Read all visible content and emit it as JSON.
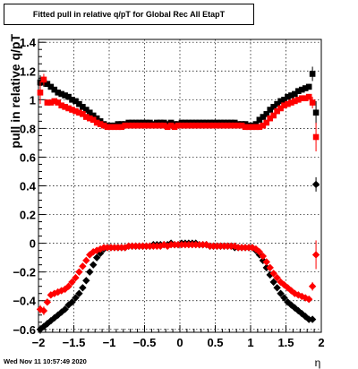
{
  "title": "Fitted pull in relative q/pT for Global Rec All EtapT",
  "datestamp": "Wed Nov 11 10:57:49 2020",
  "chart_data": {
    "type": "scatter",
    "title": "Fitted pull in relative q/pT for Global Rec All EtapT",
    "xlabel": "η",
    "ylabel": "pull in relative q/pT",
    "xlim": [
      -2.0,
      2.0
    ],
    "ylim": [
      -0.62,
      1.42
    ],
    "x_ticks": [
      "−2",
      "−1.5",
      "−1",
      "−0.5",
      "0",
      "0.5",
      "1",
      "1.5",
      "2"
    ],
    "y_ticks": [
      "−0.6",
      "−0.4",
      "−0.2",
      "0",
      "0.2",
      "0.4",
      "0.6",
      "0.8",
      "1",
      "1.2",
      "1.4"
    ],
    "grid": true,
    "colors": {
      "black": "#000000",
      "red": "#ff0000"
    },
    "series": [
      {
        "color": "black",
        "marker": "square",
        "x": [
          -1.975,
          -1.925,
          -1.875,
          -1.825,
          -1.775,
          -1.725,
          -1.675,
          -1.625,
          -1.575,
          -1.525,
          -1.475,
          -1.425,
          -1.375,
          -1.325,
          -1.275,
          -1.225,
          -1.175,
          -1.125,
          -1.075,
          -1.025,
          -0.975,
          -0.925,
          -0.875,
          -0.825,
          -0.775,
          -0.725,
          -0.675,
          -0.625,
          -0.575,
          -0.525,
          -0.475,
          -0.425,
          -0.375,
          -0.325,
          -0.275,
          -0.225,
          -0.175,
          -0.125,
          -0.075,
          -0.025,
          0.025,
          0.075,
          0.125,
          0.175,
          0.225,
          0.275,
          0.325,
          0.375,
          0.425,
          0.475,
          0.525,
          0.575,
          0.625,
          0.675,
          0.725,
          0.775,
          0.825,
          0.875,
          0.925,
          0.975,
          1.025,
          1.075,
          1.125,
          1.175,
          1.225,
          1.275,
          1.325,
          1.375,
          1.425,
          1.475,
          1.525,
          1.575,
          1.625,
          1.675,
          1.725,
          1.775,
          1.825,
          1.875,
          1.925
        ],
        "y": [
          1.12,
          1.12,
          1.11,
          1.09,
          1.07,
          1.05,
          1.04,
          1.03,
          1.02,
          1.0,
          0.99,
          0.97,
          0.95,
          0.93,
          0.91,
          0.89,
          0.87,
          0.85,
          0.83,
          0.82,
          0.82,
          0.82,
          0.83,
          0.83,
          0.83,
          0.84,
          0.84,
          0.84,
          0.84,
          0.84,
          0.84,
          0.84,
          0.83,
          0.84,
          0.84,
          0.84,
          0.83,
          0.84,
          0.83,
          0.83,
          0.84,
          0.84,
          0.84,
          0.84,
          0.84,
          0.84,
          0.84,
          0.84,
          0.84,
          0.84,
          0.84,
          0.84,
          0.84,
          0.84,
          0.84,
          0.84,
          0.83,
          0.83,
          0.83,
          0.82,
          0.82,
          0.83,
          0.86,
          0.88,
          0.9,
          0.93,
          0.95,
          0.97,
          0.99,
          1.0,
          1.02,
          1.03,
          1.04,
          1.06,
          1.07,
          1.08,
          1.09,
          1.18,
          0.91
        ],
        "yerr": [
          0.05,
          0.03,
          0.02,
          0,
          0,
          0,
          0,
          0,
          0,
          0,
          0,
          0,
          0,
          0,
          0,
          0,
          0,
          0,
          0,
          0,
          0,
          0,
          0,
          0,
          0,
          0,
          0,
          0,
          0,
          0,
          0,
          0,
          0,
          0,
          0,
          0,
          0,
          0,
          0,
          0,
          0,
          0,
          0,
          0,
          0,
          0,
          0,
          0,
          0,
          0,
          0,
          0,
          0,
          0,
          0,
          0,
          0,
          0,
          0,
          0,
          0,
          0,
          0,
          0,
          0,
          0,
          0,
          0,
          0,
          0,
          0,
          0,
          0,
          0,
          0,
          0,
          0.02,
          0.05,
          0.08
        ]
      },
      {
        "color": "red",
        "marker": "square",
        "x": [
          -1.975,
          -1.925,
          -1.875,
          -1.825,
          -1.775,
          -1.725,
          -1.675,
          -1.625,
          -1.575,
          -1.525,
          -1.475,
          -1.425,
          -1.375,
          -1.325,
          -1.275,
          -1.225,
          -1.175,
          -1.125,
          -1.075,
          -1.025,
          -0.975,
          -0.925,
          -0.875,
          -0.825,
          -0.775,
          -0.725,
          -0.675,
          -0.625,
          -0.575,
          -0.525,
          -0.475,
          -0.425,
          -0.375,
          -0.325,
          -0.275,
          -0.225,
          -0.175,
          -0.125,
          -0.075,
          -0.025,
          0.025,
          0.075,
          0.125,
          0.175,
          0.225,
          0.275,
          0.325,
          0.375,
          0.425,
          0.475,
          0.525,
          0.575,
          0.625,
          0.675,
          0.725,
          0.775,
          0.825,
          0.875,
          0.925,
          0.975,
          1.025,
          1.075,
          1.125,
          1.175,
          1.225,
          1.275,
          1.325,
          1.375,
          1.425,
          1.475,
          1.525,
          1.575,
          1.625,
          1.675,
          1.725,
          1.775,
          1.825,
          1.875,
          1.925
        ],
        "y": [
          1.05,
          1.14,
          0.98,
          0.98,
          0.99,
          0.98,
          0.96,
          0.95,
          0.94,
          0.93,
          0.92,
          0.91,
          0.9,
          0.88,
          0.87,
          0.86,
          0.84,
          0.83,
          0.82,
          0.81,
          0.81,
          0.81,
          0.81,
          0.81,
          0.82,
          0.82,
          0.82,
          0.82,
          0.82,
          0.82,
          0.82,
          0.82,
          0.82,
          0.82,
          0.82,
          0.82,
          0.81,
          0.82,
          0.81,
          0.82,
          0.82,
          0.82,
          0.82,
          0.82,
          0.82,
          0.82,
          0.82,
          0.82,
          0.82,
          0.82,
          0.82,
          0.82,
          0.82,
          0.82,
          0.82,
          0.82,
          0.82,
          0.82,
          0.81,
          0.81,
          0.81,
          0.81,
          0.81,
          0.82,
          0.84,
          0.87,
          0.89,
          0.92,
          0.94,
          0.96,
          0.97,
          0.98,
          0.99,
          1.0,
          1.01,
          1.01,
          1.02,
          0.98,
          0.74
        ],
        "yerr": [
          0.08,
          0.04,
          0.02,
          0,
          0,
          0,
          0,
          0,
          0,
          0,
          0,
          0,
          0,
          0,
          0,
          0,
          0,
          0,
          0,
          0,
          0,
          0,
          0,
          0,
          0,
          0,
          0,
          0,
          0,
          0,
          0,
          0,
          0,
          0,
          0,
          0,
          0,
          0,
          0,
          0,
          0,
          0,
          0,
          0,
          0,
          0,
          0,
          0,
          0,
          0,
          0,
          0,
          0,
          0,
          0,
          0,
          0,
          0,
          0,
          0,
          0,
          0,
          0,
          0,
          0,
          0,
          0,
          0,
          0,
          0,
          0,
          0,
          0,
          0,
          0,
          0,
          0.02,
          0.04,
          0.1
        ]
      },
      {
        "color": "black",
        "marker": "diamond",
        "x": [
          -1.975,
          -1.925,
          -1.875,
          -1.825,
          -1.775,
          -1.725,
          -1.675,
          -1.625,
          -1.575,
          -1.525,
          -1.475,
          -1.425,
          -1.375,
          -1.325,
          -1.275,
          -1.225,
          -1.175,
          -1.125,
          -1.075,
          -1.025,
          -0.975,
          -0.925,
          -0.875,
          -0.825,
          -0.775,
          -0.725,
          -0.675,
          -0.625,
          -0.575,
          -0.525,
          -0.475,
          -0.425,
          -0.375,
          -0.325,
          -0.275,
          -0.225,
          -0.175,
          -0.125,
          -0.075,
          -0.025,
          0.025,
          0.075,
          0.125,
          0.175,
          0.225,
          0.275,
          0.325,
          0.375,
          0.425,
          0.475,
          0.525,
          0.575,
          0.625,
          0.675,
          0.725,
          0.775,
          0.825,
          0.875,
          0.925,
          0.975,
          1.025,
          1.075,
          1.125,
          1.175,
          1.225,
          1.275,
          1.325,
          1.375,
          1.425,
          1.475,
          1.525,
          1.575,
          1.625,
          1.675,
          1.725,
          1.775,
          1.825,
          1.875,
          1.925
        ],
        "y": [
          -0.6,
          -0.58,
          -0.56,
          -0.54,
          -0.52,
          -0.5,
          -0.48,
          -0.46,
          -0.43,
          -0.41,
          -0.38,
          -0.35,
          -0.31,
          -0.26,
          -0.2,
          -0.15,
          -0.1,
          -0.07,
          -0.04,
          -0.03,
          -0.03,
          -0.03,
          -0.03,
          -0.03,
          -0.03,
          -0.02,
          -0.02,
          -0.02,
          -0.02,
          -0.02,
          -0.02,
          -0.02,
          -0.01,
          -0.01,
          -0.01,
          -0.01,
          -0.01,
          0.0,
          -0.01,
          -0.01,
          0.0,
          0.0,
          0.0,
          0.0,
          0.0,
          -0.01,
          -0.01,
          -0.01,
          -0.02,
          -0.02,
          -0.02,
          -0.02,
          -0.02,
          -0.02,
          -0.02,
          -0.03,
          -0.03,
          -0.03,
          -0.03,
          -0.03,
          -0.03,
          -0.05,
          -0.08,
          -0.12,
          -0.17,
          -0.22,
          -0.27,
          -0.31,
          -0.35,
          -0.38,
          -0.41,
          -0.43,
          -0.45,
          -0.47,
          -0.49,
          -0.51,
          -0.53,
          -0.53,
          0.41
        ],
        "yerr": [
          0.03,
          0.02,
          0,
          0,
          0,
          0,
          0,
          0,
          0,
          0,
          0,
          0,
          0,
          0,
          0,
          0,
          0,
          0,
          0,
          0,
          0,
          0,
          0,
          0,
          0,
          0,
          0,
          0,
          0,
          0,
          0,
          0,
          0,
          0,
          0,
          0,
          0,
          0,
          0,
          0,
          0,
          0,
          0,
          0,
          0,
          0,
          0,
          0,
          0,
          0,
          0,
          0,
          0,
          0,
          0,
          0,
          0,
          0,
          0,
          0,
          0,
          0,
          0,
          0,
          0,
          0,
          0,
          0,
          0,
          0,
          0,
          0,
          0,
          0,
          0,
          0,
          0,
          0.02,
          0.05
        ]
      },
      {
        "color": "red",
        "marker": "diamond",
        "x": [
          -1.975,
          -1.925,
          -1.875,
          -1.825,
          -1.775,
          -1.725,
          -1.675,
          -1.625,
          -1.575,
          -1.525,
          -1.475,
          -1.425,
          -1.375,
          -1.325,
          -1.275,
          -1.225,
          -1.175,
          -1.125,
          -1.075,
          -1.025,
          -0.975,
          -0.925,
          -0.875,
          -0.825,
          -0.775,
          -0.725,
          -0.675,
          -0.625,
          -0.575,
          -0.525,
          -0.475,
          -0.425,
          -0.375,
          -0.325,
          -0.275,
          -0.225,
          -0.175,
          -0.125,
          -0.075,
          -0.025,
          0.025,
          0.075,
          0.125,
          0.175,
          0.225,
          0.275,
          0.325,
          0.375,
          0.425,
          0.475,
          0.525,
          0.575,
          0.625,
          0.675,
          0.725,
          0.775,
          0.825,
          0.875,
          0.925,
          0.975,
          1.025,
          1.075,
          1.125,
          1.175,
          1.225,
          1.275,
          1.325,
          1.375,
          1.425,
          1.475,
          1.525,
          1.575,
          1.625,
          1.675,
          1.725,
          1.775,
          1.825,
          1.875,
          1.925
        ],
        "y": [
          -0.46,
          -0.47,
          -0.41,
          -0.36,
          -0.35,
          -0.34,
          -0.33,
          -0.32,
          -0.3,
          -0.27,
          -0.24,
          -0.2,
          -0.16,
          -0.12,
          -0.08,
          -0.06,
          -0.05,
          -0.04,
          -0.03,
          -0.03,
          -0.03,
          -0.03,
          -0.03,
          -0.03,
          -0.03,
          -0.02,
          -0.02,
          -0.02,
          -0.02,
          -0.02,
          -0.02,
          -0.02,
          -0.02,
          -0.02,
          -0.02,
          -0.01,
          -0.02,
          -0.01,
          -0.01,
          -0.01,
          -0.01,
          -0.01,
          -0.01,
          -0.01,
          -0.01,
          -0.01,
          -0.01,
          -0.01,
          -0.02,
          -0.02,
          -0.02,
          -0.02,
          -0.02,
          -0.02,
          -0.02,
          -0.02,
          -0.03,
          -0.03,
          -0.03,
          -0.03,
          -0.03,
          -0.04,
          -0.06,
          -0.09,
          -0.13,
          -0.17,
          -0.21,
          -0.24,
          -0.27,
          -0.29,
          -0.31,
          -0.33,
          -0.35,
          -0.36,
          -0.37,
          -0.38,
          -0.39,
          -0.3,
          -0.08
        ],
        "yerr": [
          0.03,
          0.03,
          0.02,
          0,
          0,
          0,
          0,
          0,
          0,
          0,
          0,
          0,
          0,
          0,
          0,
          0,
          0,
          0,
          0,
          0,
          0,
          0,
          0,
          0,
          0,
          0,
          0,
          0,
          0,
          0,
          0,
          0,
          0,
          0,
          0,
          0,
          0,
          0,
          0,
          0,
          0,
          0,
          0,
          0,
          0,
          0,
          0,
          0,
          0,
          0,
          0,
          0,
          0,
          0,
          0,
          0,
          0,
          0,
          0,
          0,
          0,
          0,
          0,
          0,
          0,
          0,
          0,
          0,
          0,
          0,
          0,
          0,
          0,
          0,
          0,
          0,
          0,
          0.03,
          0.1
        ]
      }
    ]
  }
}
